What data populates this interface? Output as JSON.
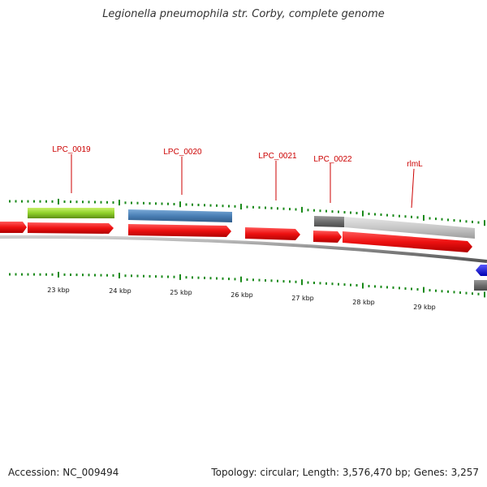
{
  "title": "Legionella pneumophila str. Corby, complete genome",
  "footer": {
    "accession": "Accession: NC_009494",
    "summary": "Topology: circular; Length: 3,576,470 bp; Genes: 3,257"
  },
  "scale_labels": [
    "23 kbp",
    "24 kbp",
    "25 kbp",
    "26 kbp",
    "27 kbp",
    "28 kbp",
    "29 kbp"
  ],
  "gene_labels": [
    "LPC_0019",
    "LPC_0020",
    "LPC_0021",
    "LPC_0022",
    "rlmL"
  ],
  "colors": {
    "cds": "#ee1111",
    "gene_green": "#8fd12a",
    "gene_blue": "#4a7fb5",
    "gene_gray": "#c8c8c8",
    "gene_dark": "#6e6e6e",
    "backbone": "#888888",
    "tick": "#1a8a1a",
    "label": "#cc0000"
  }
}
